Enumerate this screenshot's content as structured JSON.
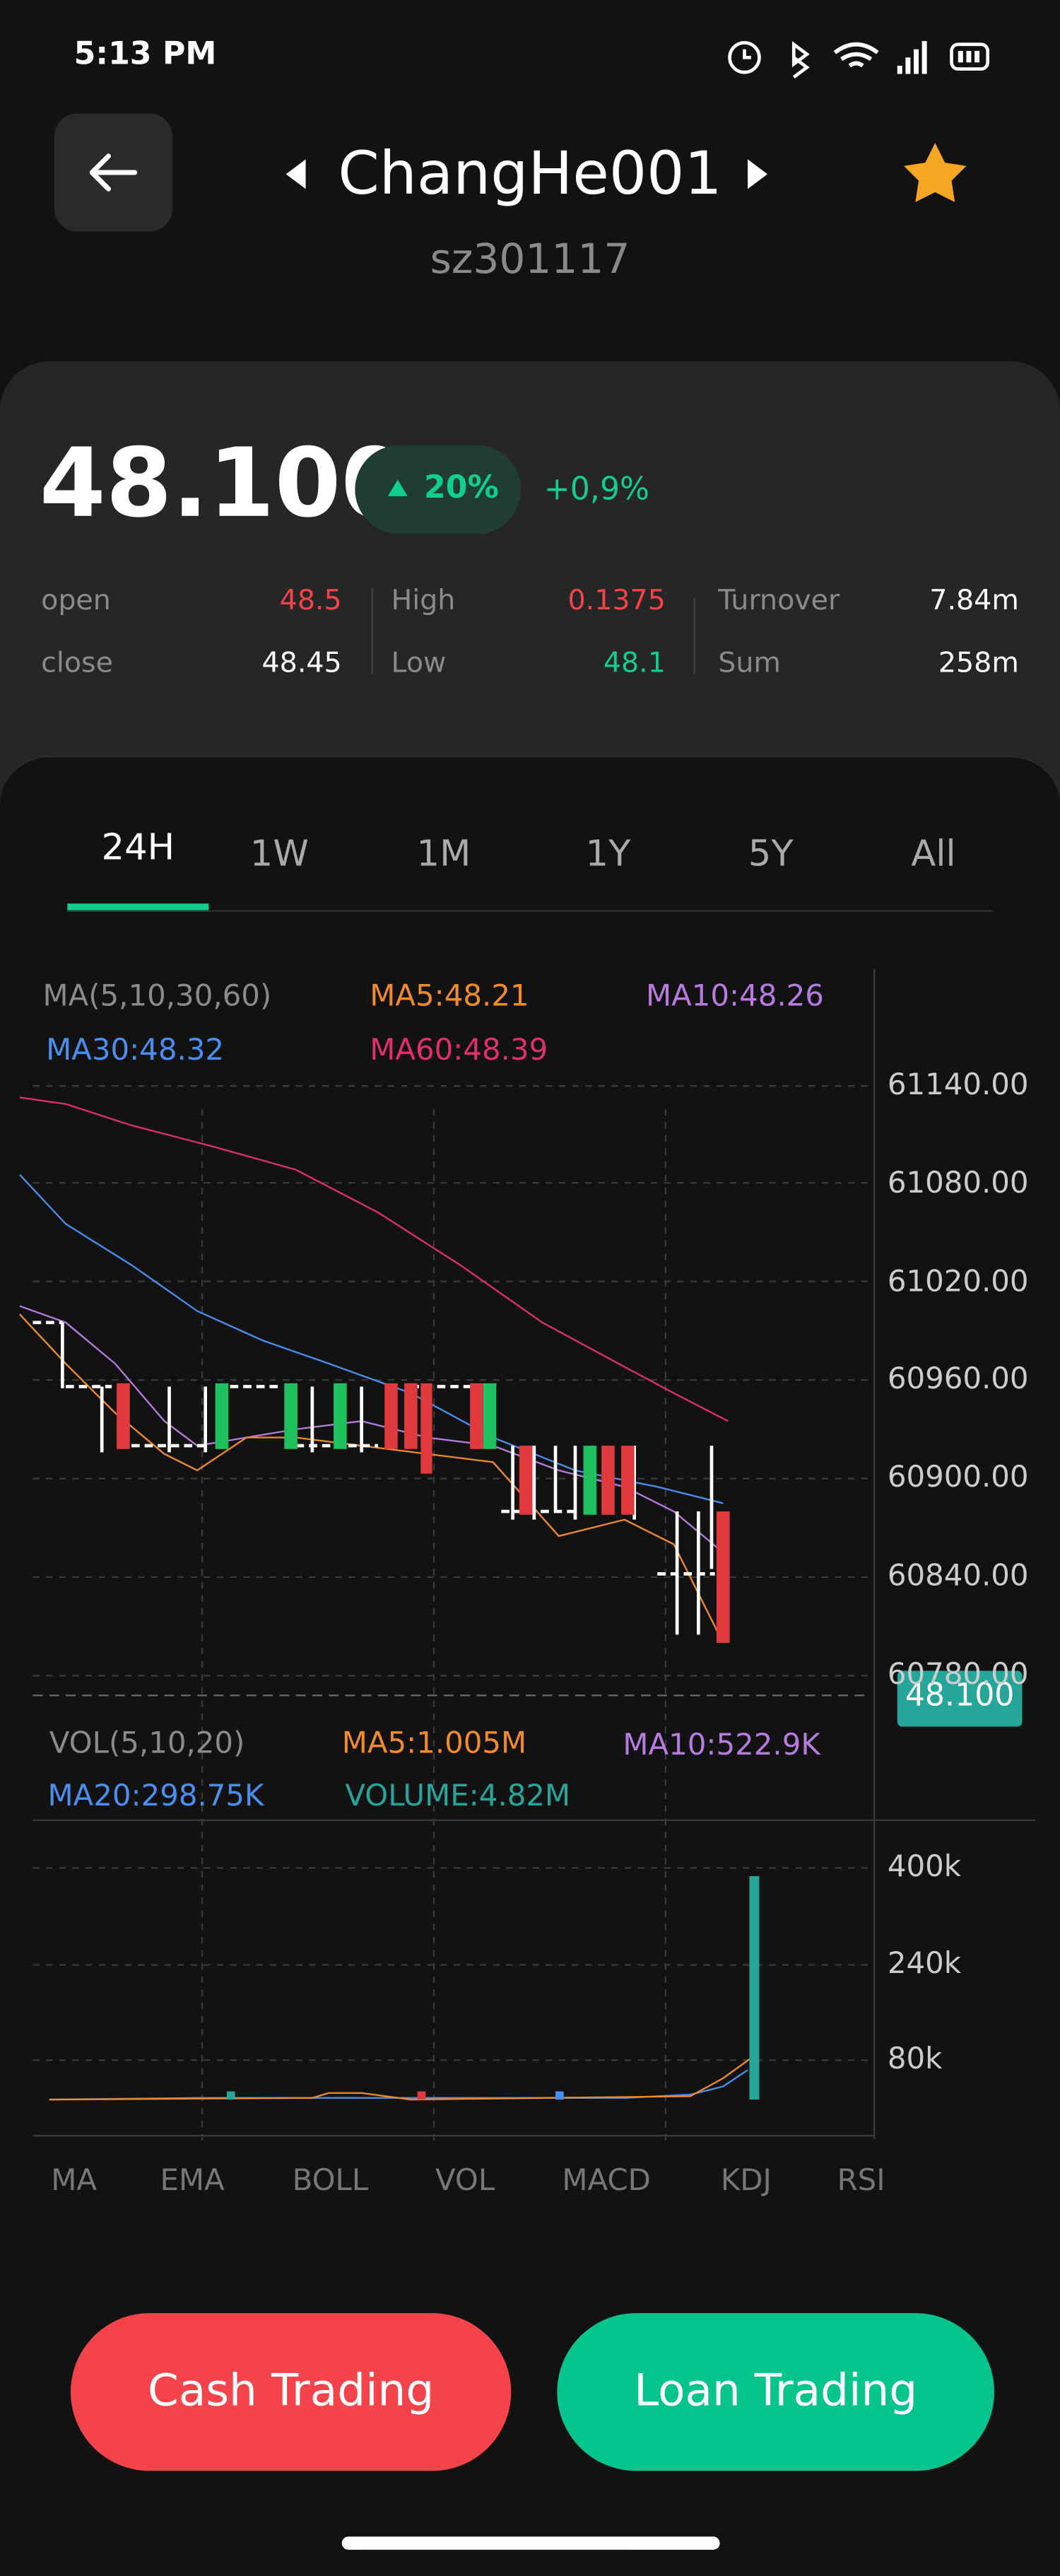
{
  "status": {
    "time": "5:13 PM"
  },
  "header": {
    "title": "ChangHe001",
    "code": "sz301117"
  },
  "quote": {
    "price": "48.100",
    "change_pct": "20%",
    "change": "+0,9%"
  },
  "stats": {
    "rows": [
      [
        [
          "open",
          "48.5"
        ],
        [
          "High",
          "0.1375"
        ],
        [
          "Turnover",
          "7.84m"
        ]
      ],
      [
        [
          "close",
          "48.45"
        ],
        [
          "Low",
          "48.1"
        ],
        [
          "Sum",
          "258m"
        ]
      ]
    ]
  },
  "tabs": [
    "24H",
    "1W",
    "1M",
    "1Y",
    "5Y",
    "All"
  ],
  "ma_legend": [
    "MA(5,10,30,60)",
    "MA5:48.21",
    "MA10:48.26",
    "MA30:48.32",
    "MA60:48.39"
  ],
  "price_axis": [
    "61140.00",
    "61080.00",
    "61020.00",
    "60960.00",
    "60900.00",
    "60840.00",
    "60780.00"
  ],
  "current_price_tag": "48.100",
  "vol_legend": [
    "VOL(5,10,20)",
    "MA5:1.005M",
    "MA10:522.9K",
    "MA20:298.75K",
    "VOLUME:4.82M"
  ],
  "vol_axis": [
    "400k",
    "240k",
    "80k"
  ],
  "indicators": [
    "MA",
    "EMA",
    "BOLL",
    "VOL",
    "MACD",
    "KDJ",
    "RSI"
  ],
  "buttons": [
    "Cash Trading",
    "Loan Trading"
  ]
}
